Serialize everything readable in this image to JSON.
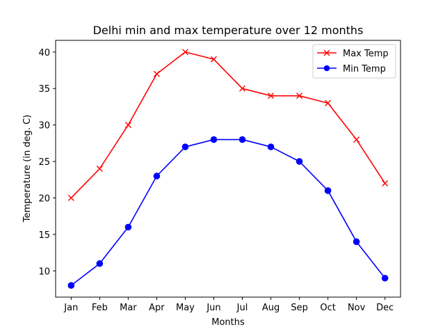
{
  "chart_data": {
    "type": "line",
    "title": "Delhi min and max temperature over 12 months",
    "xlabel": "Months",
    "ylabel": "Temperature (in deg. C)",
    "categories": [
      "Jan",
      "Feb",
      "Mar",
      "Apr",
      "May",
      "Jun",
      "Jul",
      "Aug",
      "Sep",
      "Oct",
      "Nov",
      "Dec"
    ],
    "ylim": [
      6.4,
      41.6
    ],
    "yticks": [
      10,
      15,
      20,
      25,
      30,
      35,
      40
    ],
    "grid": false,
    "legend_position": "top-right",
    "series": [
      {
        "name": "Max Temp",
        "color": "#ff0000",
        "marker": "x",
        "values": [
          20,
          24,
          30,
          37,
          40,
          39,
          35,
          34,
          34,
          33,
          28,
          22
        ]
      },
      {
        "name": "Min Temp",
        "color": "#0000ff",
        "marker": "circle",
        "values": [
          8,
          11,
          16,
          23,
          27,
          28,
          28,
          27,
          25,
          21,
          14,
          9
        ]
      }
    ]
  }
}
